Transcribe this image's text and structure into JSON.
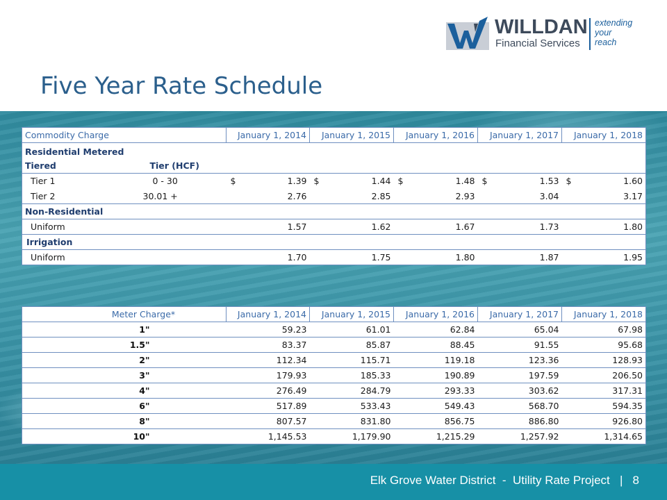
{
  "logo": {
    "name": "WILLDAN",
    "sub": "Financial Services",
    "tagline": [
      "extending",
      "your",
      "reach"
    ]
  },
  "title": "Five Year Rate Schedule",
  "commodity": {
    "header": [
      "Commodity Charge",
      "January 1, 2014",
      "January 1, 2015",
      "January 1, 2016",
      "January 1, 2017",
      "January 1, 2018"
    ],
    "residential_label": "Residential Metered",
    "tiered_label": "Tiered",
    "tier_hcf_label": "Tier (HCF)",
    "tier1": {
      "label": "Tier 1",
      "range": "0  -  30",
      "currency": "$",
      "values": [
        "1.39",
        "1.44",
        "1.48",
        "1.53",
        "1.60"
      ]
    },
    "tier2": {
      "label": "Tier 2",
      "range": "30.01 +",
      "values": [
        "2.76",
        "2.85",
        "2.93",
        "3.04",
        "3.17"
      ]
    },
    "nonres_label": "Non-Residential",
    "nonres_uniform": {
      "label": "Uniform",
      "values": [
        "1.57",
        "1.62",
        "1.67",
        "1.73",
        "1.80"
      ]
    },
    "irrigation_label": "Irrigation",
    "irr_uniform": {
      "label": "Uniform",
      "values": [
        "1.70",
        "1.75",
        "1.80",
        "1.87",
        "1.95"
      ]
    }
  },
  "meter": {
    "header": [
      "Meter Charge*",
      "January 1, 2014",
      "January 1, 2015",
      "January 1, 2016",
      "January 1, 2017",
      "January 1, 2018"
    ],
    "rows": [
      {
        "size": "1\"",
        "values": [
          "59.23",
          "61.01",
          "62.84",
          "65.04",
          "67.98"
        ]
      },
      {
        "size": "1.5\"",
        "values": [
          "83.37",
          "85.87",
          "88.45",
          "91.55",
          "95.68"
        ]
      },
      {
        "size": "2\"",
        "values": [
          "112.34",
          "115.71",
          "119.18",
          "123.36",
          "128.93"
        ]
      },
      {
        "size": "3\"",
        "values": [
          "179.93",
          "185.33",
          "190.89",
          "197.59",
          "206.50"
        ]
      },
      {
        "size": "4\"",
        "values": [
          "276.49",
          "284.79",
          "293.33",
          "303.62",
          "317.31"
        ]
      },
      {
        "size": "6\"",
        "values": [
          "517.89",
          "533.43",
          "549.43",
          "568.70",
          "594.35"
        ]
      },
      {
        "size": "8\"",
        "values": [
          "807.57",
          "831.80",
          "856.75",
          "886.80",
          "926.80"
        ]
      },
      {
        "size": "10\"",
        "values": [
          "1,145.53",
          "1,179.90",
          "1,215.29",
          "1,257.92",
          "1,314.65"
        ]
      }
    ]
  },
  "footer": {
    "text": "Elk Grove Water District  -  Utility Rate Project   |   8"
  },
  "colors": {
    "title": "#2b5f8c",
    "footer_bar": "#1790a6",
    "table_border": "#6e8fbf",
    "header_text": "#3a6aa8",
    "water": "#3d97aa"
  }
}
